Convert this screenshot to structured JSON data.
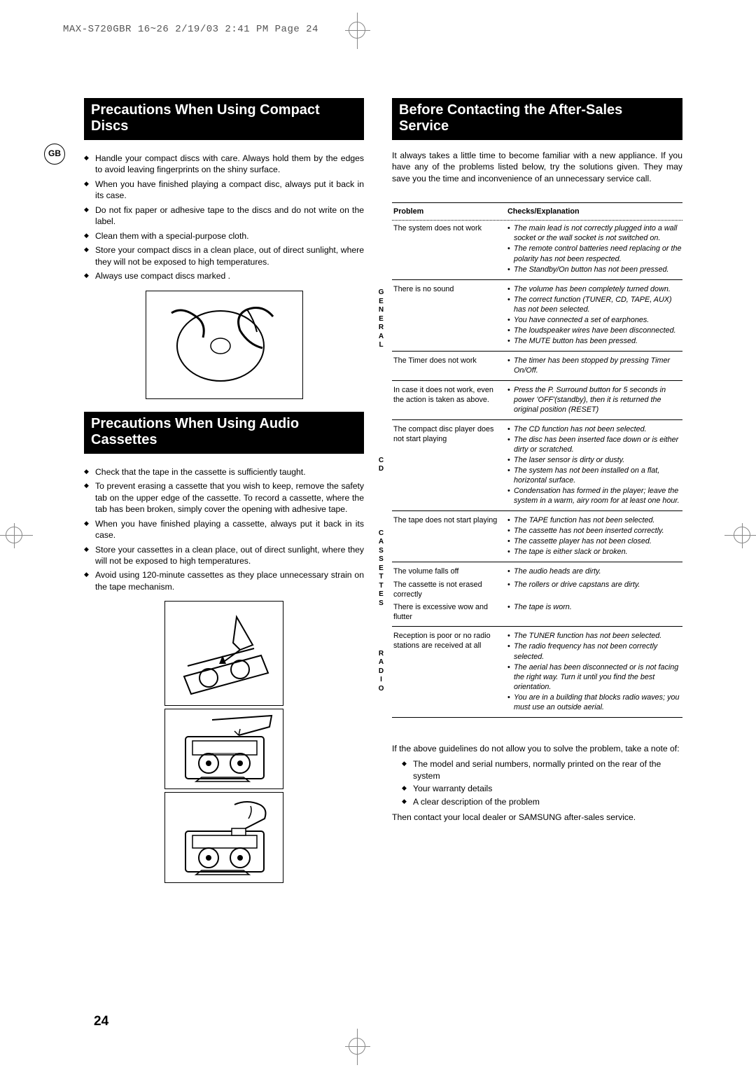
{
  "header_strip": "MAX-S720GBR 16~26  2/19/03 2:41 PM  Page 24",
  "gb_label": "GB",
  "page_number": "24",
  "left": {
    "heading1": "Precautions When Using Compact Discs",
    "list1": [
      "Handle your compact discs with care. Always hold them by the edges to avoid leaving fingerprints on the shiny surface.",
      "When you have finished playing a compact disc, always put it back in its case.",
      "Do not fix paper or adhesive tape to the discs and do not write on the label.",
      "Clean them with a special-purpose cloth.",
      "Store your compact discs in a clean place, out of direct sunlight, where they will not be exposed to high temperatures.",
      "Always use compact discs marked        ."
    ],
    "heading2": "Precautions When Using Audio Cassettes",
    "list2": [
      "Check that the tape in the cassette is sufficiently taught.",
      "To prevent erasing a cassette that you wish to keep, remove the safety tab on the upper edge of the cassette. To record a cassette, where the tab has been broken, simply cover the opening with adhesive tape.",
      "When you have finished playing a cassette, always put it back in its case.",
      "Store your cassettes in a clean place, out of direct sunlight, where they will not be exposed to high temperatures.",
      "Avoid using 120-minute cassettes as they place unnecessary strain on the tape mechanism."
    ]
  },
  "right": {
    "heading": "Before Contacting the After-Sales Service",
    "intro": "It always takes a little time to become familiar with a new appliance. If you have any of the problems listed below, try the solutions given. They may save you the time and inconvenience of an unnecessary service call.",
    "th_problem": "Problem",
    "th_checks": "Checks/Explanation",
    "sections": {
      "general": {
        "label": "GENERAL",
        "rows": [
          {
            "problem": "The system does not work",
            "checks": [
              "The main lead is not correctly plugged into a wall socket or the wall socket is not switched on.",
              "The remote control batteries need replacing or the polarity has not been respected.",
              "The  Standby/On button has not been pressed."
            ]
          },
          {
            "problem": "There is no sound",
            "checks": [
              "The volume has been completely turned down.",
              "The correct function (TUNER, CD, TAPE, AUX) has not been selected.",
              "You have connected a set of earphones.",
              "The loudspeaker wires have been disconnected.",
              "The MUTE button has been pressed."
            ]
          },
          {
            "problem": "The Timer does not work",
            "checks": [
              "The timer has been stopped by pressing Timer On/Off."
            ]
          },
          {
            "problem": "In case it does not work, even the action is taken as above.",
            "checks": [
              "Press the P. Surround button for 5 seconds in power 'OFF'(standby), then it is returned the original position (RESET)"
            ]
          }
        ]
      },
      "cd": {
        "label": "CD",
        "rows": [
          {
            "problem": "The compact disc player does not start playing",
            "checks": [
              "The CD function has not been selected.",
              "The disc has been inserted face down or is either dirty or scratched.",
              "The laser sensor is dirty or dusty.",
              "The system has not been installed on a flat, horizontal surface.",
              "Condensation has formed in the player; leave the system in a warm, airy room for at least one hour."
            ]
          }
        ]
      },
      "cassettes": {
        "label": "CASSETTES",
        "rows": [
          {
            "problem": "The tape does not start playing",
            "checks": [
              "The TAPE function has not been selected.",
              "The cassette has not been inserted correctly.",
              "The cassette player has not been closed.",
              "The tape is either slack or broken."
            ]
          },
          {
            "problem": "The volume falls off",
            "checks": [
              "The audio heads are dirty."
            ]
          },
          {
            "problem": "The cassette is not erased correctly",
            "checks": [
              "The rollers or drive capstans are dirty."
            ]
          },
          {
            "problem": "There is excessive wow and flutter",
            "checks": [
              "The tape is worn."
            ]
          }
        ]
      },
      "radio": {
        "label": "RADIO",
        "rows": [
          {
            "problem": "Reception is poor or no radio sta­tions are received at all",
            "checks": [
              "The TUNER function has not been selected.",
              "The radio frequency has not been correctly selected.",
              "The aerial has been disconnected or is not facing the right way. Turn it until you find the best orientation.",
              "You are in a building that blocks radio waves; you must use an outside aerial."
            ]
          }
        ]
      }
    },
    "after1": "If the above guidelines do not allow you to solve the problem, take a note of:",
    "after_list": [
      "The model and serial numbers, normally printed on the rear of the system",
      "Your warranty details",
      "A clear description of the problem"
    ],
    "after2": "Then contact your local dealer or SAMSUNG after-sales service."
  }
}
